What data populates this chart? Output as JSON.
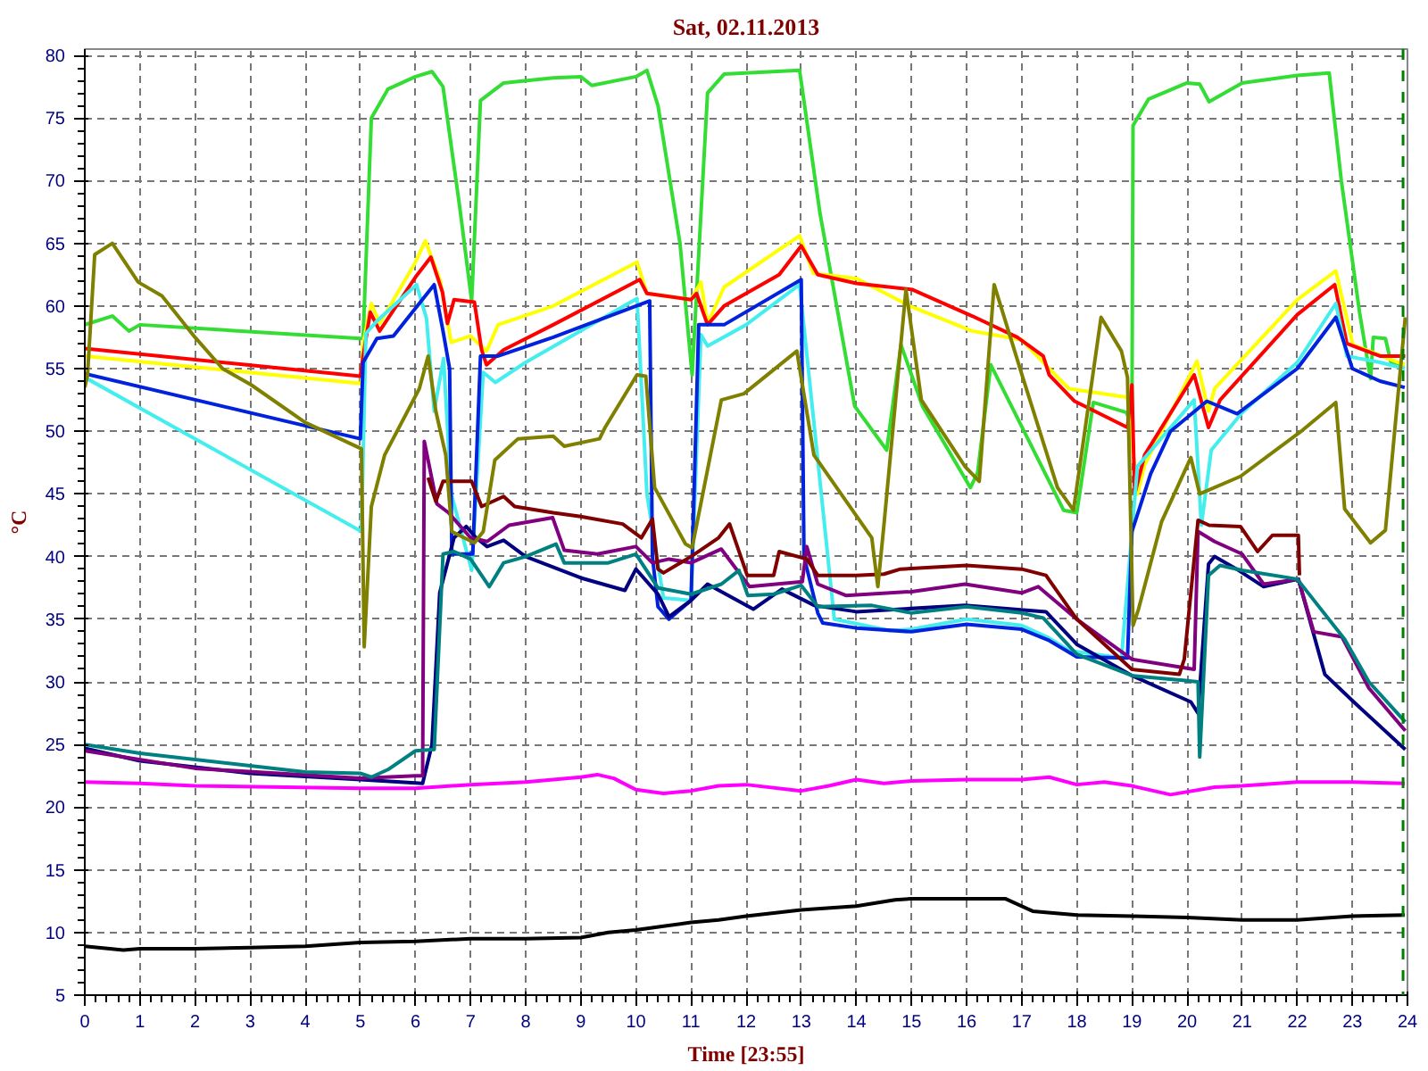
{
  "chart_data": {
    "type": "line",
    "title": "Sat, 02.11.2013",
    "xlabel": "Time [23:55]",
    "ylabel": "°C",
    "xlim": [
      0,
      24
    ],
    "ylim": [
      5,
      80.5
    ],
    "xticks": [
      0,
      1,
      2,
      3,
      4,
      5,
      6,
      7,
      8,
      9,
      10,
      11,
      12,
      13,
      14,
      15,
      16,
      17,
      18,
      19,
      20,
      21,
      22,
      23,
      24
    ],
    "yticks": [
      5,
      10,
      15,
      20,
      25,
      30,
      35,
      40,
      45,
      50,
      55,
      60,
      65,
      70,
      75,
      80
    ],
    "grid": true,
    "marker": "none",
    "line_style": "solid",
    "ref_lines": [
      {
        "axis": "x",
        "value": 23.92,
        "label": null,
        "color": "#008000",
        "line_style": "dashed"
      }
    ],
    "series": [
      {
        "color": "#33dd33",
        "x": [
          0,
          0.5,
          0.8,
          1,
          5,
          5.05,
          5.2,
          5.5,
          6,
          6.3,
          6.5,
          6.8,
          7.02,
          7.18,
          7.6,
          8.5,
          9,
          9.2,
          10,
          10.2,
          10.4,
          10.8,
          11.02,
          11.3,
          11.6,
          12.97,
          13.34,
          13.97,
          14.55,
          14.81,
          15.2,
          16.07,
          16.2,
          16.44,
          17.76,
          18.0,
          18.3,
          18.9,
          19.0,
          19.02,
          19.3,
          20,
          20.23,
          20.4,
          21,
          22,
          22.58,
          22.8,
          23.13,
          23.33,
          23.38,
          23.6,
          23.7,
          23.95
        ],
        "values": [
          58.5,
          59.2,
          58,
          58.5,
          57.4,
          57.4,
          75,
          77.3,
          78.3,
          78.7,
          77.5,
          68,
          60.4,
          76.4,
          77.8,
          78.2,
          78.3,
          77.6,
          78.3,
          78.8,
          76,
          65,
          54.5,
          77,
          78.5,
          78.8,
          67.4,
          52,
          48.5,
          56.9,
          52,
          45.5,
          46.7,
          55.3,
          43.7,
          43.5,
          52.3,
          51.5,
          50.5,
          74.4,
          76.5,
          77.8,
          77.7,
          76.3,
          77.8,
          78.4,
          78.6,
          70,
          59.5,
          54.2,
          57.5,
          57.4,
          55.5,
          55.3
        ]
      },
      {
        "color": "#ffff00",
        "x": [
          0,
          5.02,
          5.05,
          5.2,
          5.35,
          6.0,
          6.18,
          6.45,
          6.65,
          7.0,
          7.29,
          7.5,
          8.5,
          10.02,
          10.2,
          11,
          11.18,
          11.3,
          11.6,
          12.97,
          13.22,
          14,
          15.02,
          16.1,
          17.0,
          17.5,
          17.86,
          18.92,
          19.1,
          19.23,
          20.18,
          20.39,
          20.5,
          22,
          22.7,
          23.01,
          23.95
        ],
        "values": [
          56,
          53.8,
          57,
          60.2,
          58.6,
          63.5,
          65.2,
          62,
          57.1,
          57.6,
          56.4,
          58.5,
          60,
          63.5,
          61,
          60.5,
          61.9,
          58.6,
          61.5,
          65.6,
          62.6,
          62.2,
          59.9,
          58,
          57.3,
          55,
          53.4,
          52.7,
          45,
          47.3,
          55.6,
          51.6,
          53.4,
          60.5,
          62.8,
          56.9,
          55.3
        ]
      },
      {
        "color": "#ff0000",
        "x": [
          0,
          5,
          5.05,
          5.18,
          5.35,
          6.0,
          6.28,
          6.49,
          6.58,
          6.7,
          7.07,
          7.2,
          7.29,
          7.6,
          8.5,
          10.07,
          10.2,
          11,
          11.1,
          11.3,
          11.6,
          12.6,
          13.0,
          13.3,
          14,
          15.02,
          16.1,
          16.92,
          17.39,
          17.5,
          17.96,
          18.92,
          19.0,
          19.05,
          19.23,
          20.13,
          20.39,
          20.6,
          22,
          22.68,
          22.9,
          23.5,
          23.96
        ],
        "values": [
          56.6,
          54.4,
          56,
          59.5,
          58,
          62.3,
          63.9,
          61.1,
          58.6,
          60.5,
          60.3,
          56.5,
          55.3,
          56.5,
          58.5,
          62.1,
          61,
          60.5,
          61,
          58.5,
          60,
          62.5,
          64.8,
          62.5,
          61.8,
          61.3,
          59.2,
          57.5,
          56.0,
          54.5,
          52.4,
          50.3,
          53.7,
          45,
          48.1,
          54.5,
          50.3,
          52.5,
          59.3,
          61.7,
          57,
          56,
          56
        ]
      },
      {
        "color": "#44eeee",
        "x": [
          0,
          5.02,
          5.1,
          5.3,
          6.02,
          6.2,
          6.34,
          6.51,
          6.65,
          7.02,
          7.23,
          7.45,
          8,
          10.02,
          10.2,
          10.5,
          11,
          11.18,
          11.3,
          12,
          12.97,
          13.6,
          14.6,
          15,
          16,
          17.0,
          17.5,
          17.86,
          18.81,
          19.1,
          20.13,
          20.26,
          20.44,
          21,
          22,
          22.7,
          22.9,
          23.5,
          23.95
        ],
        "values": [
          54.3,
          42.0,
          57.8,
          58.8,
          61.7,
          59,
          51.6,
          55.8,
          45,
          38.9,
          54.7,
          53.9,
          55.5,
          60.6,
          45,
          36.7,
          36.5,
          57.7,
          56.8,
          58.5,
          61.7,
          35.0,
          34.1,
          34.2,
          35,
          34.5,
          33.5,
          32.5,
          31.9,
          47.2,
          52.5,
          42.5,
          48.5,
          51.5,
          55.5,
          60.2,
          56,
          55.5,
          55
        ]
      },
      {
        "color": "#0022dd",
        "x": [
          0,
          5,
          5.05,
          5.3,
          5.6,
          6.34,
          6.5,
          6.62,
          6.66,
          7.04,
          7.18,
          7.5,
          8.5,
          10.25,
          10.3,
          10.4,
          10.6,
          11.0,
          11.14,
          11.6,
          13.0,
          13.05,
          13.3,
          13.39,
          14.0,
          15,
          16,
          17,
          17.5,
          18,
          18.92,
          19.0,
          19.34,
          19.7,
          20.36,
          20.91,
          22,
          22.7,
          23,
          23.5,
          23.95
        ],
        "values": [
          54.6,
          49.4,
          55.5,
          57.4,
          57.6,
          61.7,
          58,
          55,
          40.2,
          40.2,
          56,
          56,
          57.5,
          60.4,
          40,
          36,
          35.0,
          36.5,
          58.5,
          58.5,
          62.1,
          40,
          35.5,
          34.7,
          34.3,
          34,
          34.6,
          34.2,
          33.3,
          32,
          31.9,
          42,
          46.6,
          50,
          52.4,
          51.4,
          55,
          59.1,
          55,
          54,
          53.5
        ]
      },
      {
        "color": "#000080",
        "x": [
          0,
          1,
          3,
          5,
          6.13,
          6.3,
          6.44,
          6.7,
          6.92,
          7.1,
          7.3,
          7.6,
          8,
          9,
          9.8,
          10.0,
          10.4,
          10.6,
          11,
          11.3,
          12.13,
          12.65,
          13.24,
          14.0,
          15.97,
          17.44,
          18,
          19,
          20.07,
          20.2,
          20.39,
          20.5,
          20.9,
          21.39,
          22.02,
          22.5,
          23,
          23.96
        ],
        "values": [
          24.7,
          23.7,
          22.7,
          22.2,
          21.9,
          25,
          37.1,
          41.5,
          42.4,
          41.5,
          40.8,
          41.3,
          40,
          38.3,
          37.3,
          39,
          37,
          35.2,
          36.5,
          37.8,
          35.8,
          37.4,
          36.1,
          35.6,
          36.1,
          35.6,
          33,
          30.5,
          28.4,
          27.5,
          39.4,
          40,
          39,
          37.6,
          38.2,
          30.6,
          28.5,
          24.6
        ]
      },
      {
        "color": "#800080",
        "x": [
          0,
          2,
          5,
          6.0,
          6.13,
          6.16,
          6.39,
          6.6,
          7.0,
          7.3,
          7.7,
          8.49,
          8.7,
          9.3,
          10.0,
          10.3,
          10.6,
          11,
          11.55,
          12.06,
          13.02,
          13.1,
          13.3,
          13.81,
          15,
          15.97,
          17.0,
          17.3,
          18,
          19,
          20.13,
          20.2,
          20.5,
          21,
          21.39,
          22.02,
          22.3,
          22.81,
          23.3,
          23.96
        ],
        "values": [
          24.5,
          23.1,
          22.3,
          22.5,
          22.5,
          49.2,
          44.2,
          43.5,
          41.5,
          41.2,
          42.5,
          43.1,
          40.5,
          40.2,
          40.8,
          39.5,
          39.8,
          39.5,
          40.6,
          37.6,
          38.0,
          40.8,
          37.8,
          36.9,
          37.2,
          37.8,
          37.1,
          37.6,
          35,
          31.8,
          31.0,
          42.0,
          41.2,
          40.2,
          37.8,
          38.2,
          34,
          33.6,
          29.5,
          26.1
        ]
      },
      {
        "color": "#800000",
        "x": [
          6.23,
          6.37,
          6.5,
          7.02,
          7.2,
          7.6,
          7.8,
          8.5,
          9.0,
          9.76,
          10.1,
          10.3,
          10.4,
          10.5,
          11,
          11.5,
          11.7,
          12.02,
          12.5,
          12.6,
          13.1,
          13.3,
          14,
          14.5,
          14.8,
          16,
          17,
          17.44,
          18,
          19,
          19.86,
          19.95,
          20.2,
          20.4,
          20.97,
          21.28,
          21.55,
          22.02,
          22.04
        ],
        "values": [
          46.3,
          44.4,
          46,
          46.0,
          44,
          44.8,
          44,
          43.5,
          43.2,
          42.6,
          41.5,
          43.0,
          39,
          38.7,
          40,
          41.5,
          42.6,
          38.5,
          38.5,
          40.4,
          39.8,
          38.5,
          38.5,
          38.6,
          39.0,
          39.3,
          39,
          38.5,
          35,
          31,
          30.6,
          31.8,
          42.9,
          42.5,
          42.4,
          40.4,
          41.7,
          41.7,
          38.5
        ]
      },
      {
        "color": "#008080",
        "x": [
          0,
          1,
          3,
          4,
          5,
          5.2,
          5.5,
          6.0,
          6.34,
          6.5,
          6.7,
          7.0,
          7.34,
          7.6,
          8.0,
          8.55,
          8.7,
          9.5,
          10.0,
          10.4,
          11,
          11.55,
          11.87,
          12.03,
          12.5,
          13.0,
          13.3,
          14.28,
          15,
          16,
          17,
          17.39,
          18,
          19,
          19.97,
          20.2,
          20.23,
          20.39,
          20.6,
          21,
          22,
          22.86,
          23.3,
          23.96
        ],
        "values": [
          25,
          24.3,
          23.3,
          22.8,
          22.7,
          22.4,
          23,
          24.5,
          24.6,
          40.2,
          40.4,
          39.8,
          37.6,
          39.5,
          40,
          41.0,
          39.5,
          39.5,
          40.2,
          37.5,
          37,
          37.8,
          38.9,
          36.9,
          37,
          37.7,
          36,
          36.1,
          35.5,
          36,
          35.5,
          35.1,
          32.2,
          30.5,
          30.1,
          30,
          24.0,
          38.5,
          39.3,
          38.9,
          38.2,
          33.4,
          30,
          26.8
        ]
      },
      {
        "color": "#808000",
        "x": [
          0,
          0.05,
          0.18,
          0.5,
          0.97,
          1.4,
          2.0,
          2.5,
          3.02,
          4.0,
          5.02,
          5.07,
          5.2,
          5.44,
          6.07,
          6.23,
          6.37,
          6.55,
          6.66,
          7.07,
          7.23,
          7.44,
          7.86,
          8.5,
          8.7,
          9.34,
          9.44,
          10.02,
          10.18,
          10.34,
          10.9,
          11.02,
          11.55,
          11.96,
          12.92,
          13.23,
          14.28,
          14.39,
          14.5,
          14.9,
          15.18,
          15.97,
          16.23,
          16.5,
          17.02,
          17.65,
          17.94,
          18.44,
          18.81,
          18.92,
          19.02,
          19.12,
          19.54,
          20.07,
          20.23,
          20.97,
          22.1,
          22.7,
          22.86,
          23.33,
          23.6,
          23.96
        ],
        "values": [
          53.5,
          54.5,
          64.1,
          65.0,
          61.9,
          60.8,
          57.5,
          55,
          53.7,
          50.7,
          48.6,
          32.8,
          44,
          48.1,
          53.4,
          56.0,
          51.6,
          48.1,
          42.0,
          41.1,
          42,
          47.7,
          49.4,
          49.6,
          48.8,
          49.4,
          50.3,
          54.5,
          54.4,
          45.5,
          41,
          40.7,
          52.5,
          53,
          56.4,
          48.1,
          41.5,
          37.6,
          42.5,
          61.3,
          52.5,
          47.2,
          46,
          61.7,
          54.3,
          45.5,
          43.7,
          59.1,
          56.4,
          54.3,
          34.5,
          35.8,
          42.8,
          47.9,
          45.0,
          46.4,
          50.1,
          52.3,
          43.8,
          41.1,
          42.1,
          59.1
        ]
      },
      {
        "color": "#ff00ff",
        "x": [
          0,
          1,
          2,
          5,
          6,
          7,
          8,
          9,
          9.3,
          9.6,
          10,
          10.5,
          11,
          11.5,
          12,
          13,
          13.5,
          14,
          14.5,
          15,
          16,
          17,
          17.5,
          18,
          18.5,
          19,
          19.7,
          20.5,
          21,
          22,
          23,
          23.95
        ],
        "values": [
          22,
          21.9,
          21.7,
          21.5,
          21.5,
          21.8,
          22,
          22.4,
          22.6,
          22.3,
          21.4,
          21.1,
          21.3,
          21.7,
          21.8,
          21.3,
          21.7,
          22.2,
          21.9,
          22.1,
          22.2,
          22.2,
          22.4,
          21.8,
          22,
          21.7,
          21.0,
          21.6,
          21.7,
          22,
          22,
          21.9
        ]
      },
      {
        "color": "#000000",
        "x": [
          0,
          0.7,
          1,
          2,
          3,
          4,
          5,
          6,
          7,
          8,
          9,
          9.5,
          10,
          10.5,
          11,
          11.5,
          12,
          13,
          14,
          14.7,
          15,
          16,
          16.7,
          17.2,
          18,
          19,
          20,
          21,
          22,
          23,
          23.95
        ],
        "values": [
          8.9,
          8.6,
          8.7,
          8.7,
          8.8,
          8.9,
          9.2,
          9.3,
          9.5,
          9.5,
          9.6,
          10,
          10.2,
          10.5,
          10.8,
          11.0,
          11.3,
          11.8,
          12.1,
          12.6,
          12.7,
          12.7,
          12.7,
          11.7,
          11.4,
          11.3,
          11.2,
          11.0,
          11.0,
          11.3,
          11.4
        ]
      }
    ]
  }
}
